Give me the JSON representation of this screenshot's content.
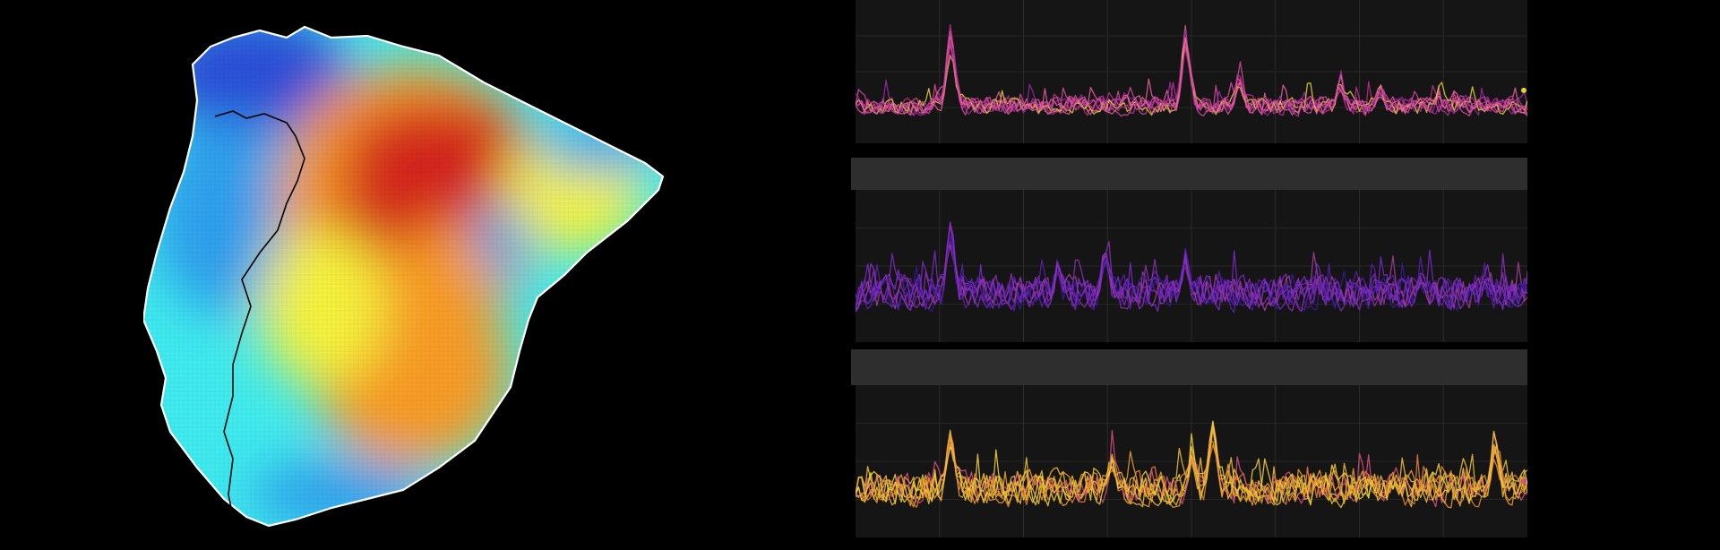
{
  "map": {
    "colormap": "jet",
    "colors": {
      "cold": "#2a4fd8",
      "cool": "#2fa0ee",
      "cyan": "#40ecef",
      "yellow": "#f6f33c",
      "orange": "#f89b27",
      "hot": "#d4261c",
      "border": "#000000",
      "coast": "#ffffff"
    },
    "legend": [],
    "title": ""
  },
  "chart_data": [
    {
      "type": "line",
      "title": "",
      "xlabel": "",
      "ylabel": "",
      "grid": true,
      "palette": [
        "#b8318f",
        "#d64b9f",
        "#e8609c",
        "#9a2aa0",
        "#e4d23a"
      ],
      "series_count": 8,
      "x_range": [
        0,
        100
      ],
      "ylim": [
        0,
        1
      ],
      "peaks": [
        {
          "x": 14,
          "y": 0.94
        },
        {
          "x": 49,
          "y": 0.96
        },
        {
          "x": 57,
          "y": 0.55
        },
        {
          "x": 72,
          "y": 0.5
        },
        {
          "x": 78,
          "y": 0.45
        }
      ]
    },
    {
      "type": "line",
      "title": "",
      "xlabel": "",
      "ylabel": "",
      "grid": true,
      "palette": [
        "#5a1fb0",
        "#7a2ac8",
        "#8d2fb8",
        "#a33e9c",
        "#3a1a9a"
      ],
      "series_count": 8,
      "x_range": [
        0,
        100
      ],
      "ylim": [
        0,
        1
      ],
      "peaks": [
        {
          "x": 14,
          "y": 0.92
        },
        {
          "x": 30,
          "y": 0.58
        },
        {
          "x": 37,
          "y": 0.72
        },
        {
          "x": 49,
          "y": 0.68
        },
        {
          "x": 84,
          "y": 0.5
        }
      ]
    },
    {
      "type": "line",
      "title": "",
      "xlabel": "",
      "ylabel": "",
      "grid": true,
      "palette": [
        "#f7d53a",
        "#f3c235",
        "#f0a030",
        "#e98236",
        "#d6507e"
      ],
      "series_count": 8,
      "x_range": [
        0,
        100
      ],
      "ylim": [
        0,
        1
      ],
      "peaks": [
        {
          "x": 14,
          "y": 0.84
        },
        {
          "x": 38,
          "y": 0.62
        },
        {
          "x": 50,
          "y": 0.66
        },
        {
          "x": 53,
          "y": 0.9
        },
        {
          "x": 95,
          "y": 0.76
        }
      ]
    }
  ]
}
